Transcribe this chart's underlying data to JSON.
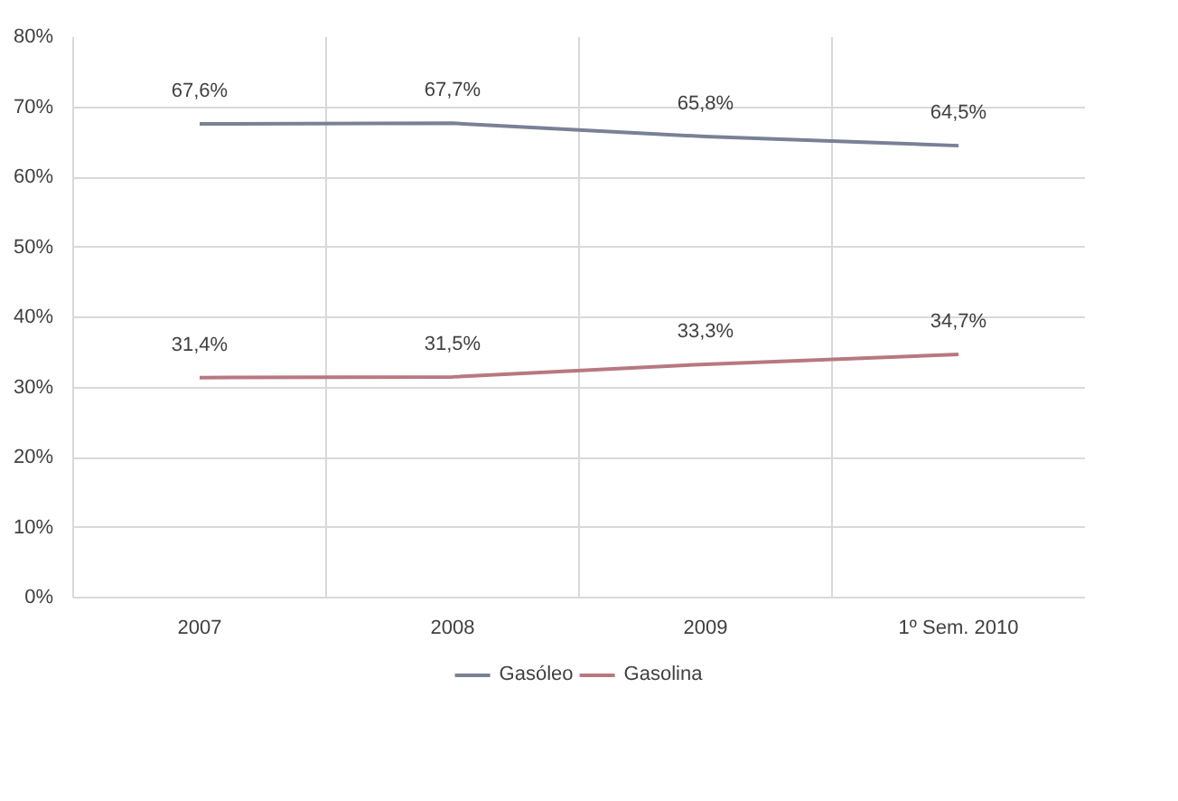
{
  "chart_data": {
    "type": "line",
    "categories": [
      "2007",
      "2008",
      "2009",
      "1º Sem. 2010"
    ],
    "series": [
      {
        "name": "Gasóleo",
        "color": "#7a8196",
        "values": [
          67.6,
          67.7,
          65.8,
          64.5
        ],
        "value_labels": [
          "67,6%",
          "67,7%",
          "65,8%",
          "64,5%"
        ]
      },
      {
        "name": "Gasolina",
        "color": "#b87880",
        "values": [
          31.4,
          31.5,
          33.3,
          34.7
        ],
        "value_labels": [
          "31,4%",
          "31,5%",
          "33,3%",
          "34,7%"
        ]
      }
    ],
    "ylim": [
      0,
      80
    ],
    "yticks": [
      {
        "value": 0,
        "label": "0%"
      },
      {
        "value": 10,
        "label": "10%"
      },
      {
        "value": 20,
        "label": "20%"
      },
      {
        "value": 30,
        "label": "30%"
      },
      {
        "value": 40,
        "label": "40%"
      },
      {
        "value": 50,
        "label": "50%"
      },
      {
        "value": 60,
        "label": "60%"
      },
      {
        "value": 70,
        "label": "70%"
      },
      {
        "value": 80,
        "label": "80%"
      }
    ],
    "grid": true,
    "legend": "bottom",
    "marker": "none",
    "line_style": "solid"
  }
}
